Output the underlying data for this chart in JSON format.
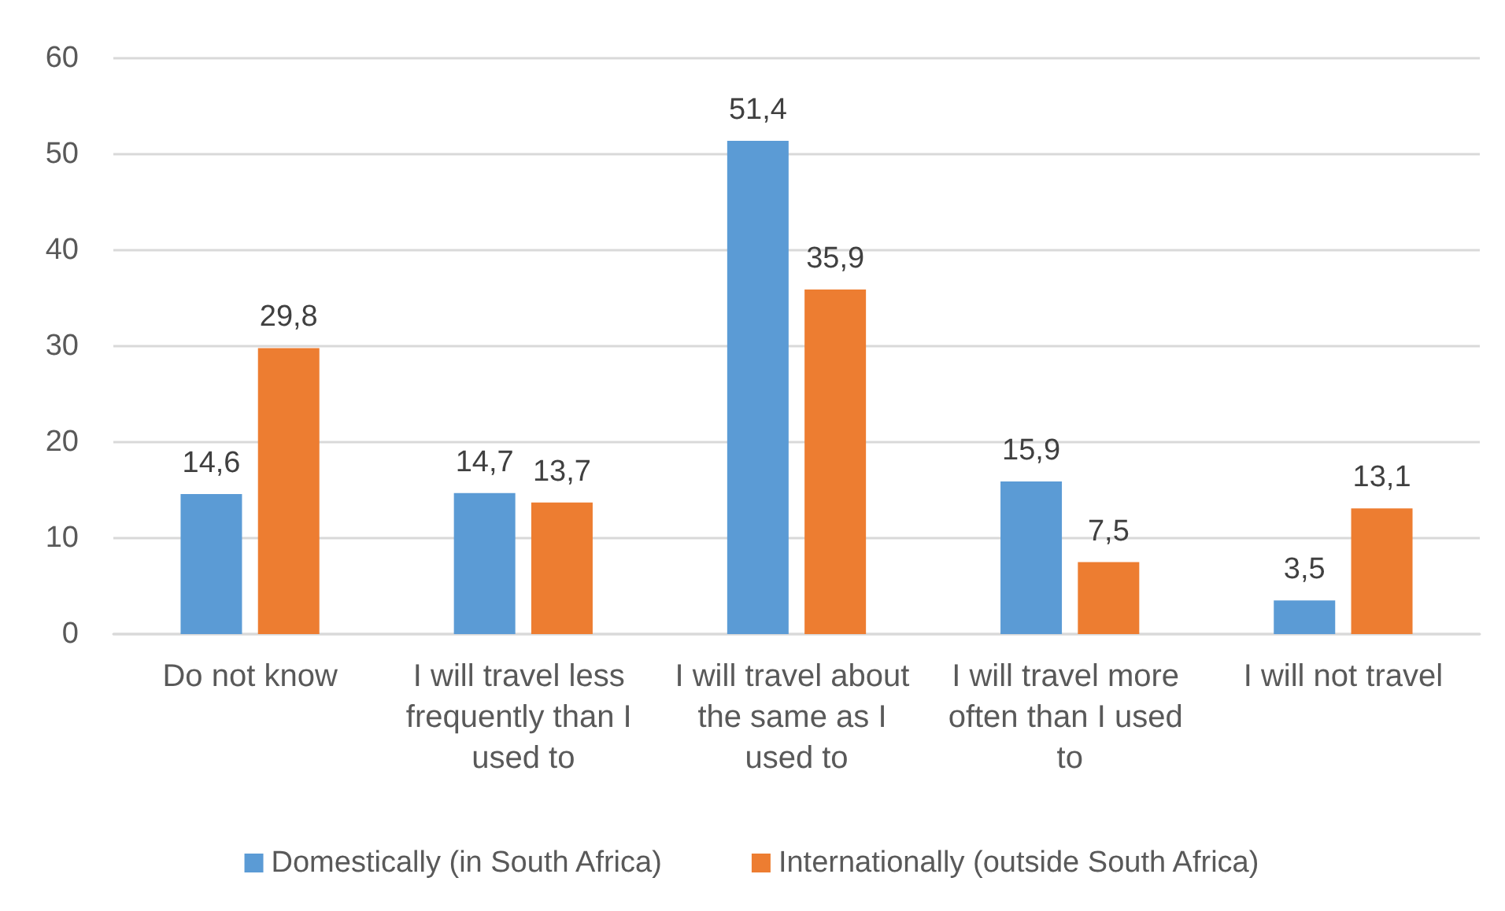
{
  "chart_data": {
    "type": "bar",
    "categories": [
      "Do not know",
      "I will travel less frequently than I used to",
      "I will travel about the same as I used to",
      "I will travel more often than I used to",
      "I will not travel"
    ],
    "series": [
      {
        "name": "Domestically (in South Africa)",
        "color": "#5b9bd5",
        "values": [
          14.6,
          14.7,
          51.4,
          15.9,
          3.5
        ],
        "value_labels": [
          "14,6",
          "14,7",
          "51,4",
          "15,9",
          "3,5"
        ]
      },
      {
        "name": "Internationally (outside South Africa)",
        "color": "#ed7d31",
        "values": [
          29.8,
          13.7,
          35.9,
          7.5,
          13.1
        ],
        "value_labels": [
          "29,8",
          "13,7",
          "35,9",
          "7,5",
          "13,1"
        ]
      }
    ],
    "ylim": [
      0,
      60
    ],
    "yticks": [
      0,
      10,
      20,
      30,
      40,
      50,
      60
    ],
    "grid": "y",
    "legend": "bottom"
  }
}
